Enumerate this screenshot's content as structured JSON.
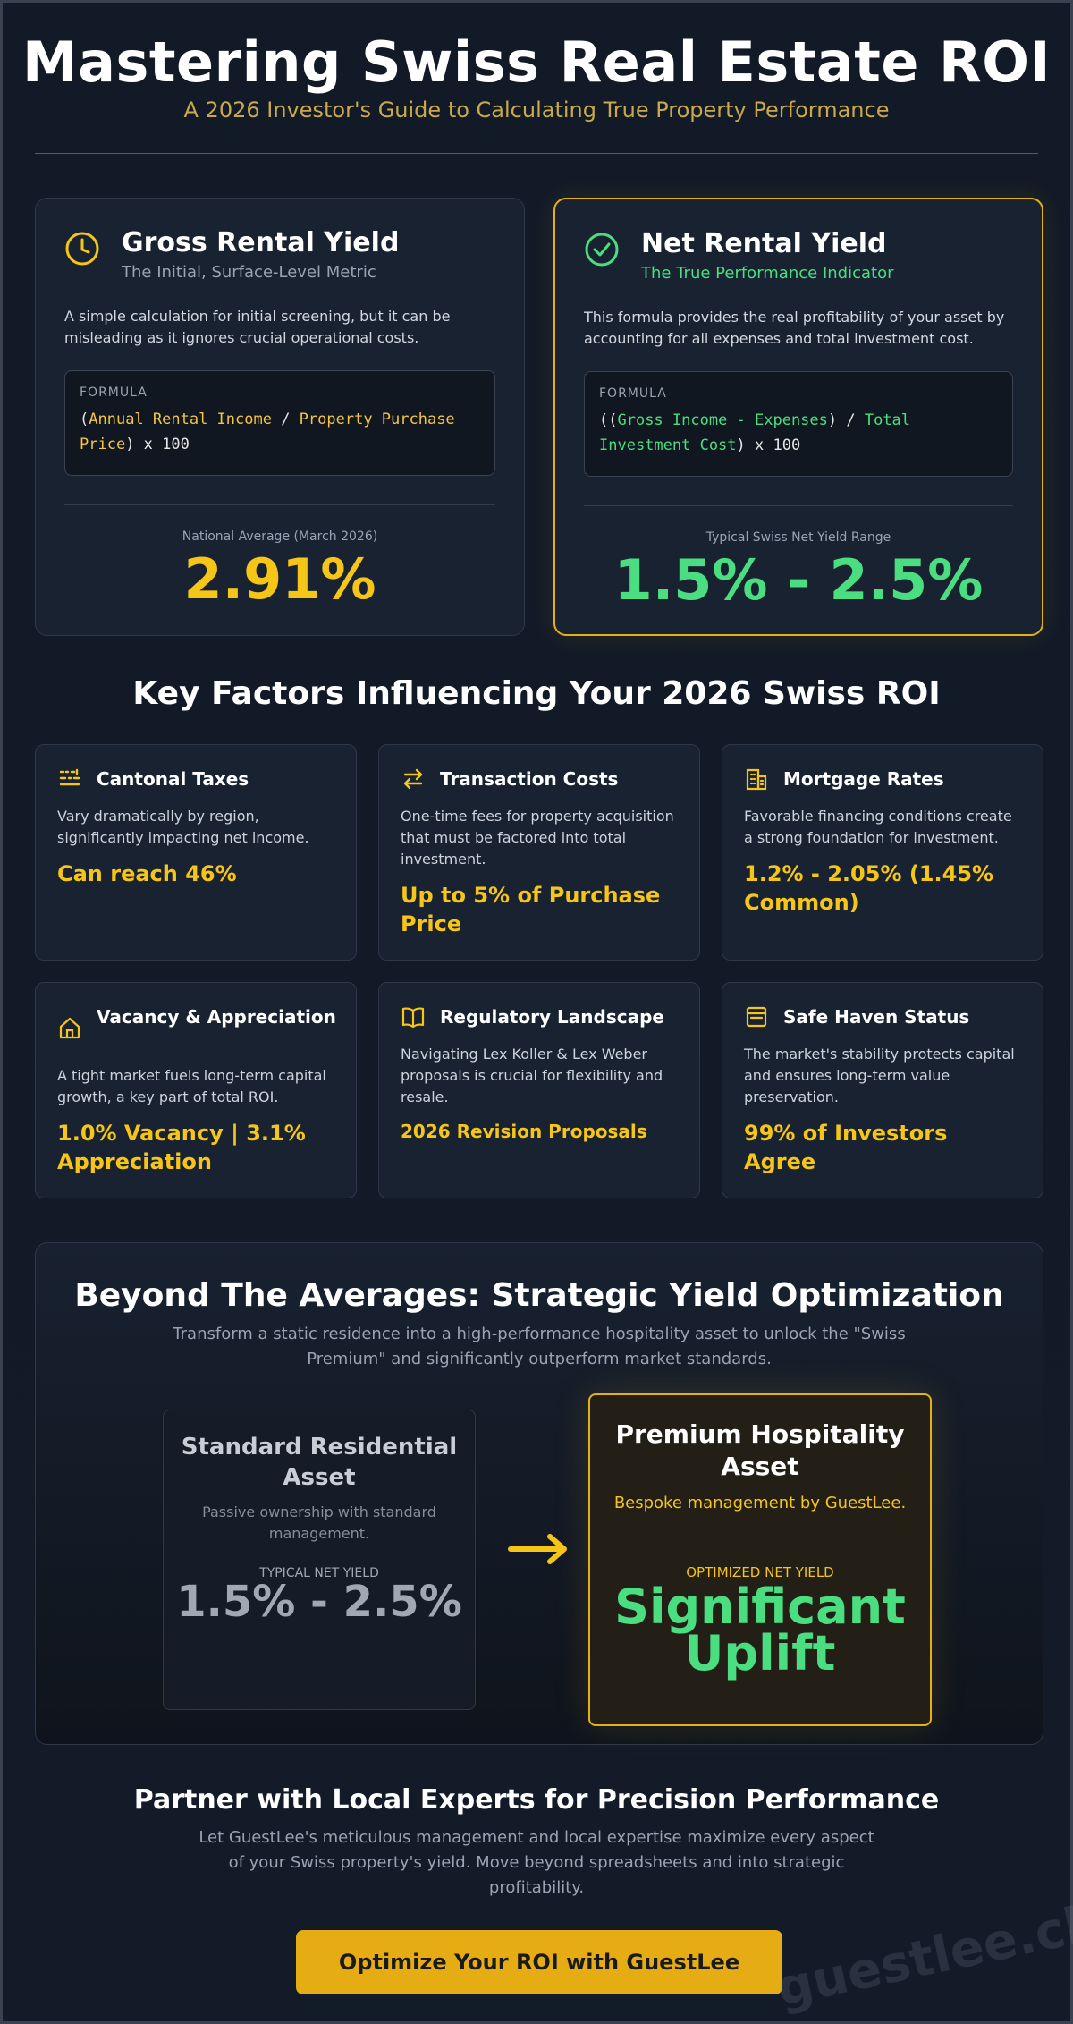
{
  "header": {
    "title": "Mastering Swiss Real Estate ROI",
    "subtitle": "A 2026 Investor's Guide to Calculating True Property Performance"
  },
  "gross": {
    "title": "Gross Rental Yield",
    "subtitle": "The Initial, Surface-Level Metric",
    "description": "A simple calculation for initial screening, but it can be misleading as it ignores crucial operational costs.",
    "formula_label": "FORMULA",
    "formula": {
      "open": "(",
      "term1": "Annual Rental Income",
      "op": " / ",
      "term2": "Property Purchase Price",
      "close": ") x 100"
    },
    "metric_label": "National Average (March 2026)",
    "metric_value": "2.91%",
    "icon": "clock-icon"
  },
  "net": {
    "title": "Net Rental Yield",
    "subtitle": "The True Performance Indicator",
    "description": "This formula provides the real profitability of your asset by accounting for all expenses and total investment cost.",
    "formula_label": "FORMULA",
    "formula": {
      "open": "((",
      "term1": "Gross Income - Expenses",
      "op": ") / ",
      "term2": "Total Investment Cost",
      "close": ") x 100"
    },
    "metric_label": "Typical Swiss Net Yield Range",
    "metric_value": "1.5% - 2.5%",
    "icon": "check-circle-icon"
  },
  "factors": {
    "title": "Key Factors Influencing Your 2026 Swiss ROI",
    "items": [
      {
        "title": "Cantonal Taxes",
        "description": "Vary dramatically by region, significantly impacting net income.",
        "value": "Can reach 46%",
        "icon": "map-icon"
      },
      {
        "title": "Transaction Costs",
        "description": "One-time fees for property acquisition that must be factored into total investment.",
        "value": "Up to 5% of Purchase Price",
        "icon": "exchange-icon"
      },
      {
        "title": "Mortgage Rates",
        "description": "Favorable financing conditions create a strong foundation for investment.",
        "value": "1.2% - 2.05% (1.45% Common)",
        "icon": "building-icon"
      },
      {
        "title": "Vacancy & Appreciation",
        "description": "A tight market fuels long-term capital growth, a key part of total ROI.",
        "value": "1.0% Vacancy | 3.1% Appreciation",
        "icon": "home-icon"
      },
      {
        "title": "Regulatory Landscape",
        "description": "Navigating Lex Koller & Lex Weber proposals is crucial for flexibility and resale.",
        "value": "2026 Revision Proposals",
        "icon": "book-icon"
      },
      {
        "title": "Safe Haven Status",
        "description": "The market's stability protects capital and ensures long-term value preservation.",
        "value": "99% of Investors Agree",
        "icon": "vault-icon"
      }
    ]
  },
  "optimization": {
    "title": "Beyond The Averages: Strategic Yield Optimization",
    "subtitle": "Transform a static residence into a high-performance hospitality asset to unlock the \"Swiss Premium\" and significantly outperform market standards.",
    "standard": {
      "title": "Standard Residential Asset",
      "subtitle": "Passive ownership with standard management.",
      "label": "TYPICAL NET YIELD",
      "value": "1.5% - 2.5%"
    },
    "premium": {
      "title": "Premium Hospitality Asset",
      "subtitle": "Bespoke management by GuestLee.",
      "label": "OPTIMIZED NET YIELD",
      "value": "Significant Uplift"
    }
  },
  "partner": {
    "title": "Partner with Local Experts for Precision Performance",
    "text": "Let GuestLee's meticulous management and local expertise maximize every aspect of your Swiss property's yield. Move beyond spreadsheets and into strategic profitability.",
    "cta": "Optimize Your ROI with GuestLee"
  },
  "watermark": "guestlee.ch",
  "colors": {
    "gold": "#f5c518",
    "green": "#4ade80",
    "background": "#121a28"
  }
}
